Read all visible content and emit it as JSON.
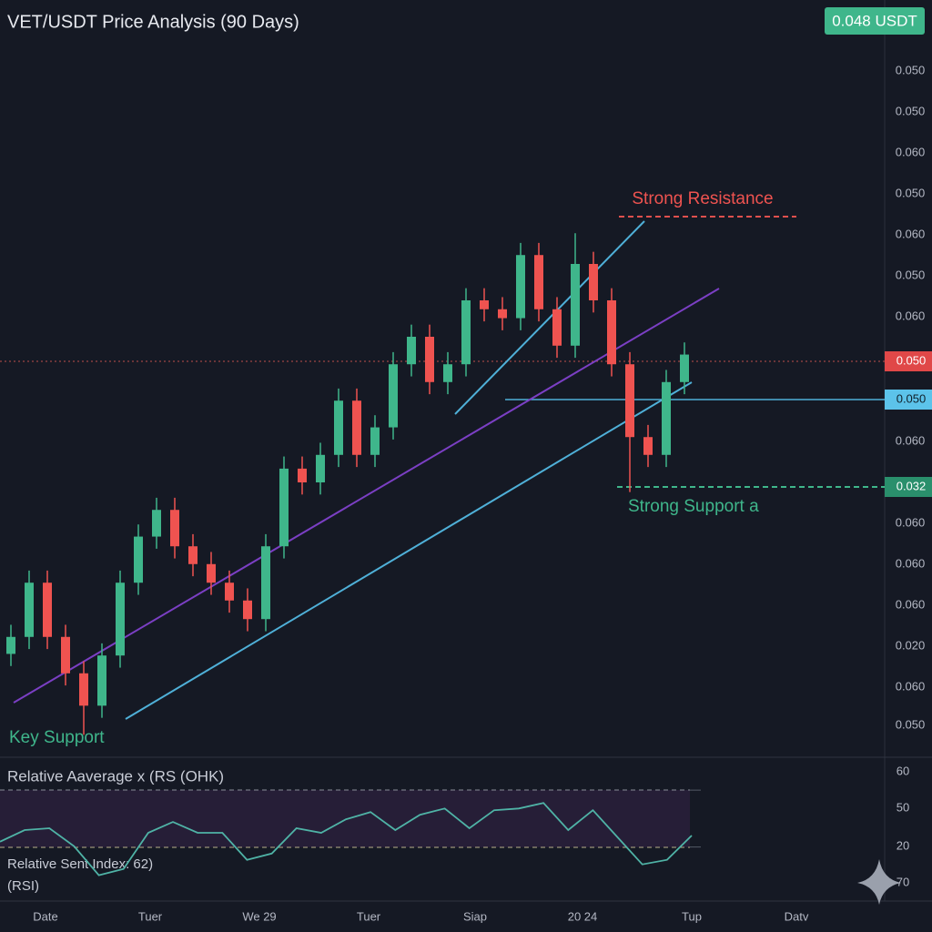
{
  "chart_data": {
    "type": "candlestick",
    "title": "VET/USDT Price Analysis (90 Days)",
    "badge": "0.048 USDT",
    "ylim": [
      0,
      0.09
    ],
    "up_color": "#3fb68b",
    "down_color": "#ef5350",
    "open": [
      0.013,
      0.0151,
      0.0218,
      0.0151,
      0.0106,
      0.0066,
      0.0128,
      0.0218,
      0.0275,
      0.0308,
      0.0263,
      0.0241,
      0.0218,
      0.0196,
      0.0173,
      0.0263,
      0.0359,
      0.0342,
      0.0376,
      0.0443,
      0.0376,
      0.041,
      0.0488,
      0.0522,
      0.0466,
      0.0488,
      0.0567,
      0.0556,
      0.0545,
      0.0623,
      0.0556,
      0.0511,
      0.0612,
      0.0567,
      0.0488,
      0.0398,
      0.0376,
      0.0466
    ],
    "high": [
      0.0166,
      0.0233,
      0.0233,
      0.0166,
      0.0121,
      0.0143,
      0.0233,
      0.029,
      0.0323,
      0.0323,
      0.0278,
      0.0256,
      0.0233,
      0.0211,
      0.0278,
      0.0374,
      0.0374,
      0.0391,
      0.0458,
      0.0458,
      0.0425,
      0.0503,
      0.0537,
      0.0537,
      0.0503,
      0.0582,
      0.0582,
      0.0571,
      0.0638,
      0.0638,
      0.0571,
      0.065,
      0.0627,
      0.0582,
      0.0503,
      0.0413,
      0.0481,
      0.0515
    ],
    "low": [
      0.0115,
      0.0136,
      0.0136,
      0.0091,
      0.003,
      0.0051,
      0.0113,
      0.0203,
      0.026,
      0.0248,
      0.0226,
      0.0203,
      0.0181,
      0.0158,
      0.0158,
      0.0248,
      0.0327,
      0.0327,
      0.0361,
      0.0361,
      0.0361,
      0.0395,
      0.0473,
      0.0451,
      0.0451,
      0.0473,
      0.0541,
      0.053,
      0.053,
      0.0541,
      0.0496,
      0.0496,
      0.0552,
      0.0473,
      0.033,
      0.0361,
      0.0361,
      0.0451
    ],
    "close": [
      0.0151,
      0.0218,
      0.0151,
      0.0106,
      0.0066,
      0.0128,
      0.0218,
      0.0275,
      0.0308,
      0.0263,
      0.0241,
      0.0218,
      0.0196,
      0.0173,
      0.0263,
      0.0359,
      0.0342,
      0.0376,
      0.0443,
      0.0376,
      0.041,
      0.0488,
      0.0522,
      0.0466,
      0.0488,
      0.0567,
      0.0556,
      0.0545,
      0.0623,
      0.0556,
      0.0511,
      0.0612,
      0.0567,
      0.0488,
      0.0398,
      0.0376,
      0.0466,
      0.05
    ],
    "price_axis_labels": [
      "0.050",
      "0.050",
      "0.060",
      "0.050",
      "0.060",
      "0.050",
      "0.060",
      "0.060",
      "0.060",
      "0.060",
      "0.060",
      "0.020",
      "0.060",
      "0.050"
    ],
    "price_tags": [
      "0.050",
      "0.050",
      "0.032"
    ],
    "annotations": [
      "Strong Resistance",
      "Strong Support a",
      "Key Support"
    ],
    "x_labels": [
      "Date",
      "Tuer",
      "We 29",
      "Tuer",
      "Siap",
      "20 24",
      "Tup",
      "Datv"
    ],
    "rsi": {
      "title": "Relative Aaverage x (RS (OHK)",
      "label": "Relative Sent Index: 62)",
      "sublabel": "(RSI)",
      "ylim": [
        -8,
        88
      ],
      "levels": [
        30,
        70
      ],
      "values": [
        33.7,
        41.9,
        43.2,
        30.5,
        10.2,
        14.6,
        40,
        47.6,
        40,
        40,
        21,
        25.4,
        43.2,
        40,
        49.5,
        54.6,
        41.9,
        52.7,
        57.1,
        43.2,
        55.9,
        57.1,
        61,
        41.9,
        55.9,
        36.8,
        17.8,
        21,
        38.1
      ],
      "axis_labels": [
        "60",
        "50",
        "20",
        "70"
      ],
      "color": "#4fb3a6"
    }
  }
}
